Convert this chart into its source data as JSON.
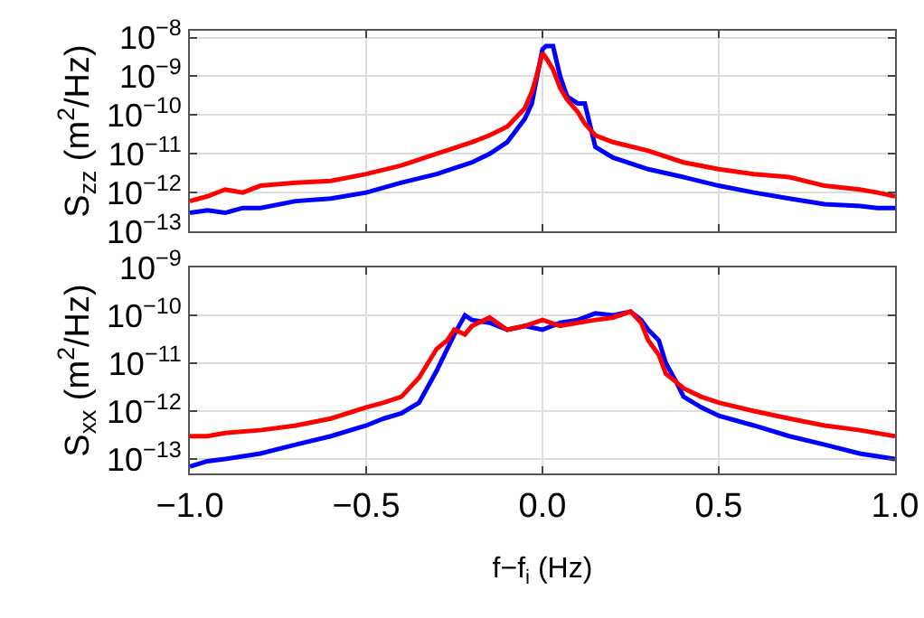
{
  "chart_data": [
    {
      "type": "line",
      "ylabel": "S$_{zz}$ (m$^{2}$/Hz)",
      "log": "y",
      "grid": true,
      "tick_labels": "y",
      "xlim": [
        -1,
        1
      ],
      "xticks": [
        -1,
        -0.5,
        0,
        0.5,
        1
      ],
      "ylim": [
        1e-13,
        1.5e-08
      ],
      "yticks": [
        {
          "value": 1e-13,
          "label": "10$^{−13}$"
        },
        {
          "value": 1e-12,
          "label": "10$^{−12}$"
        },
        {
          "value": 1e-11,
          "label": "10$^{−11}$"
        },
        {
          "value": 1e-10,
          "label": "10$^{−10}$"
        },
        {
          "value": 1e-09,
          "label": "10$^{−9}$"
        },
        {
          "value": 1e-08,
          "label": "10$^{−8}$"
        }
      ],
      "series": [
        {
          "color": "#0000ff",
          "x": [
            -1,
            -0.95,
            -0.9,
            -0.85,
            -0.8,
            -0.7,
            -0.6,
            -0.5,
            -0.4,
            -0.3,
            -0.2,
            -0.15,
            -0.1,
            -0.05,
            -0.03,
            -0.02,
            0,
            0.01,
            0.03,
            0.05,
            0.07,
            0.1,
            0.12,
            0.15,
            0.2,
            0.3,
            0.4,
            0.5,
            0.6,
            0.7,
            0.8,
            0.9,
            0.95,
            1
          ],
          "values": [
            3e-13,
            3.5e-13,
            3e-13,
            4e-13,
            4e-13,
            6e-13,
            7e-13,
            1e-12,
            1.8e-12,
            3e-12,
            6e-12,
            1e-11,
            2e-11,
            8e-11,
            2e-10,
            6e-10,
            5e-09,
            6e-09,
            6e-09,
            1e-09,
            3e-10,
            2e-10,
            2e-10,
            1.5e-11,
            8e-12,
            4e-12,
            2.5e-12,
            1.5e-12,
            1e-12,
            7e-13,
            5e-13,
            4.5e-13,
            4e-13,
            4e-13
          ]
        },
        {
          "color": "#ff0000",
          "x": [
            -1,
            -0.95,
            -0.9,
            -0.85,
            -0.8,
            -0.7,
            -0.6,
            -0.5,
            -0.4,
            -0.3,
            -0.2,
            -0.15,
            -0.1,
            -0.05,
            -0.03,
            -0.02,
            0,
            0.01,
            0.03,
            0.05,
            0.07,
            0.1,
            0.12,
            0.15,
            0.2,
            0.3,
            0.4,
            0.5,
            0.6,
            0.7,
            0.8,
            0.9,
            0.95,
            1
          ],
          "values": [
            6e-13,
            8e-13,
            1.2e-12,
            1e-12,
            1.5e-12,
            1.8e-12,
            2e-12,
            3e-12,
            5e-12,
            1e-11,
            2e-11,
            3e-11,
            5e-11,
            1.5e-10,
            4e-10,
            8e-10,
            4e-09,
            3e-09,
            1.5e-09,
            5e-10,
            2.5e-10,
            1.2e-10,
            6e-11,
            3e-11,
            2e-11,
            1.2e-11,
            6e-12,
            4e-12,
            3e-12,
            2.5e-12,
            1.5e-12,
            1.2e-12,
            1e-12,
            8e-13
          ]
        }
      ]
    },
    {
      "type": "line",
      "ylabel": "S$_{xx}$ (m$^{2}$/Hz)",
      "xlabel": "f−f$_{i}$ (Hz)",
      "log": "y",
      "grid": true,
      "xlim": [
        -1,
        1
      ],
      "xticks": [
        {
          "value": -1,
          "label": "−1.0"
        },
        {
          "value": -0.5,
          "label": "−0.5"
        },
        {
          "value": 0,
          "label": "0.0"
        },
        {
          "value": 0.5,
          "label": "0.5"
        },
        {
          "value": 1,
          "label": "1.0"
        }
      ],
      "ylim": [
        5e-14,
        1e-09
      ],
      "yticks": [
        {
          "value": 1e-13,
          "label": "10$^{−13}$"
        },
        {
          "value": 1e-12,
          "label": "10$^{−12}$"
        },
        {
          "value": 1e-11,
          "label": "10$^{−11}$"
        },
        {
          "value": 1e-10,
          "label": "10$^{−10}$"
        },
        {
          "value": 1e-09,
          "label": "10$^{−9}$"
        }
      ],
      "series": [
        {
          "color": "#0000ff",
          "x": [
            -1,
            -0.95,
            -0.9,
            -0.8,
            -0.7,
            -0.6,
            -0.5,
            -0.45,
            -0.4,
            -0.35,
            -0.3,
            -0.27,
            -0.25,
            -0.22,
            -0.2,
            -0.15,
            -0.1,
            -0.05,
            0,
            0.05,
            0.1,
            0.15,
            0.2,
            0.25,
            0.28,
            0.3,
            0.33,
            0.35,
            0.38,
            0.4,
            0.45,
            0.5,
            0.6,
            0.7,
            0.8,
            0.9,
            1
          ],
          "values": [
            7e-14,
            9e-14,
            1e-13,
            1.3e-13,
            2e-13,
            3e-13,
            5e-13,
            7e-13,
            9e-13,
            1.5e-12,
            7e-12,
            2e-11,
            4e-11,
            1e-10,
            8e-11,
            7e-11,
            5e-11,
            6e-11,
            5e-11,
            7e-11,
            8e-11,
            1.1e-10,
            1e-10,
            1.2e-10,
            8e-11,
            5e-11,
            3e-11,
            1e-11,
            4e-12,
            2e-12,
            1.2e-12,
            8e-13,
            5e-13,
            3e-13,
            2e-13,
            1.3e-13,
            1e-13
          ]
        },
        {
          "color": "#ff0000",
          "x": [
            -1,
            -0.95,
            -0.9,
            -0.8,
            -0.7,
            -0.6,
            -0.5,
            -0.45,
            -0.4,
            -0.35,
            -0.3,
            -0.27,
            -0.25,
            -0.22,
            -0.2,
            -0.15,
            -0.1,
            -0.05,
            0,
            0.05,
            0.1,
            0.15,
            0.2,
            0.25,
            0.28,
            0.3,
            0.33,
            0.35,
            0.38,
            0.4,
            0.45,
            0.5,
            0.6,
            0.7,
            0.8,
            0.9,
            1
          ],
          "values": [
            3e-13,
            3e-13,
            3.5e-13,
            4e-13,
            5e-13,
            7e-13,
            1.2e-12,
            1.5e-12,
            2e-12,
            5e-12,
            2e-11,
            3e-11,
            5e-11,
            4e-11,
            6e-11,
            9e-11,
            5e-11,
            6e-11,
            8e-11,
            6e-11,
            7e-11,
            8e-11,
            9e-11,
            1.2e-10,
            7e-11,
            3e-11,
            1.5e-11,
            6e-12,
            4e-12,
            3e-12,
            2e-12,
            1.5e-12,
            1e-12,
            7e-13,
            5e-13,
            4e-13,
            3e-13
          ]
        }
      ]
    }
  ]
}
